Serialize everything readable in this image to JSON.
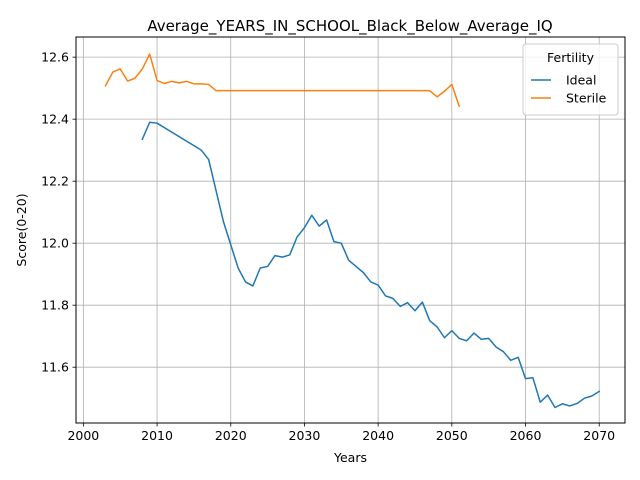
{
  "chart_data": {
    "type": "line",
    "title": "Average_YEARS_IN_SCHOOL_Black_Below_Average_IQ",
    "xlabel": "Years",
    "ylabel": "Score(0-20)",
    "xlim": [
      1999,
      2073.5
    ],
    "ylim": [
      11.42,
      12.665
    ],
    "xticks": [
      2000,
      2010,
      2020,
      2030,
      2040,
      2050,
      2060,
      2070
    ],
    "yticks": [
      11.6,
      11.8,
      12.0,
      12.2,
      12.4,
      12.6
    ],
    "ytick_labels": [
      "11.6",
      "11.8",
      "12.0",
      "12.2",
      "12.4",
      "12.6"
    ],
    "grid": true,
    "legend": {
      "title": "Fertility",
      "position": "top-right"
    },
    "series": [
      {
        "name": "Ideal",
        "color": "#1f77b4",
        "x": [
          2008,
          2009,
          2010,
          2016,
          2017,
          2018,
          2019,
          2020,
          2021,
          2022,
          2023,
          2024,
          2025,
          2026,
          2027,
          2028,
          2029,
          2030,
          2031,
          2032,
          2033,
          2034,
          2035,
          2036,
          2037,
          2038,
          2039,
          2040,
          2041,
          2042,
          2043,
          2044,
          2045,
          2046,
          2047,
          2048,
          2049,
          2050,
          2051,
          2052,
          2053,
          2054,
          2055,
          2056,
          2057,
          2058,
          2059,
          2060,
          2061,
          2062,
          2063,
          2064,
          2065,
          2066,
          2067,
          2068,
          2069,
          2070
        ],
        "values": [
          12.335,
          12.39,
          12.387,
          12.3,
          12.27,
          12.17,
          12.07,
          11.995,
          11.92,
          11.875,
          11.862,
          11.92,
          11.925,
          11.96,
          11.955,
          11.962,
          12.02,
          12.05,
          12.09,
          12.055,
          12.075,
          12.005,
          12.0,
          11.945,
          11.925,
          11.905,
          11.875,
          11.865,
          11.83,
          11.822,
          11.796,
          11.808,
          11.782,
          11.81,
          11.75,
          11.73,
          11.695,
          11.718,
          11.693,
          11.685,
          11.71,
          11.69,
          11.693,
          11.665,
          11.65,
          11.622,
          11.632,
          11.563,
          11.566,
          11.487,
          11.51,
          11.47,
          11.482,
          11.475,
          11.483,
          11.5,
          11.507,
          11.522
        ]
      },
      {
        "name": "Sterile",
        "color": "#ff7f0e",
        "x": [
          2003,
          2004,
          2005,
          2006,
          2007,
          2008,
          2009,
          2010,
          2011,
          2012,
          2013,
          2014,
          2015,
          2016,
          2017,
          2018,
          2019,
          2020,
          2030,
          2040,
          2047,
          2048,
          2049,
          2050,
          2051
        ],
        "values": [
          12.508,
          12.552,
          12.562,
          12.523,
          12.532,
          12.562,
          12.61,
          12.525,
          12.515,
          12.522,
          12.517,
          12.522,
          12.514,
          12.514,
          12.512,
          12.492,
          12.492,
          12.492,
          12.492,
          12.492,
          12.492,
          12.472,
          12.49,
          12.512,
          12.442
        ]
      }
    ]
  }
}
